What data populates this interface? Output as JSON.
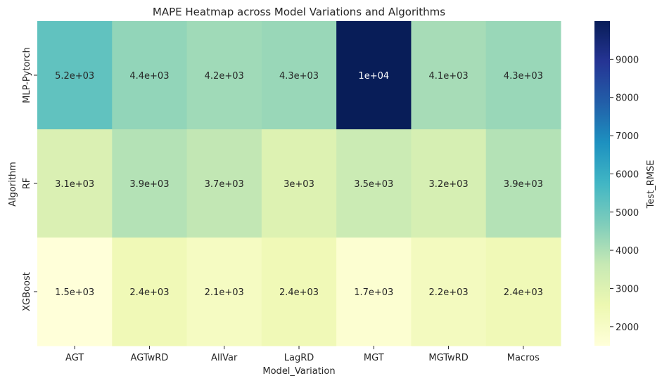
{
  "chart_data": {
    "type": "heatmap",
    "title": "MAPE Heatmap across Model Variations and Algorithms",
    "xlabel": "Model_Variation",
    "ylabel": "Algorithm",
    "colorbar_label": "Test_RMSE",
    "columns": [
      "AGT",
      "AGTwRD",
      "AllVar",
      "LagRD",
      "MGT",
      "MGTwRD",
      "Macros"
    ],
    "rows": [
      "MLP-Pytorch",
      "RF",
      "XGBoost"
    ],
    "values": [
      [
        5200,
        4400,
        4200,
        4300,
        10000,
        4100,
        4300
      ],
      [
        3100,
        3900,
        3700,
        3000,
        3500,
        3200,
        3900
      ],
      [
        1500,
        2400,
        2100,
        2400,
        1700,
        2200,
        2400
      ]
    ],
    "annotations": [
      [
        "5.2e+03",
        "4.4e+03",
        "4.2e+03",
        "4.3e+03",
        "1e+04",
        "4.1e+03",
        "4.3e+03"
      ],
      [
        "3.1e+03",
        "3.9e+03",
        "3.7e+03",
        "3e+03",
        "3.5e+03",
        "3.2e+03",
        "3.9e+03"
      ],
      [
        "1.5e+03",
        "2.4e+03",
        "2.1e+03",
        "2.4e+03",
        "1.7e+03",
        "2.2e+03",
        "2.4e+03"
      ]
    ],
    "colorbar_ticks": [
      "2000",
      "3000",
      "4000",
      "5000",
      "6000",
      "7000",
      "8000",
      "9000"
    ],
    "colorbar_tick_values": [
      2000,
      3000,
      4000,
      5000,
      6000,
      7000,
      8000,
      9000
    ],
    "color_range": [
      1500,
      10000
    ],
    "colormap": "YlGnBu",
    "colormap_stops": [
      "#ffffd9",
      "#edf8b1",
      "#c7e9b4",
      "#7fcdbb",
      "#41b6c4",
      "#1d91c0",
      "#225ea8",
      "#253494",
      "#081d58"
    ],
    "text_color_dark": "#262626",
    "text_color_light": "#ffffff"
  }
}
